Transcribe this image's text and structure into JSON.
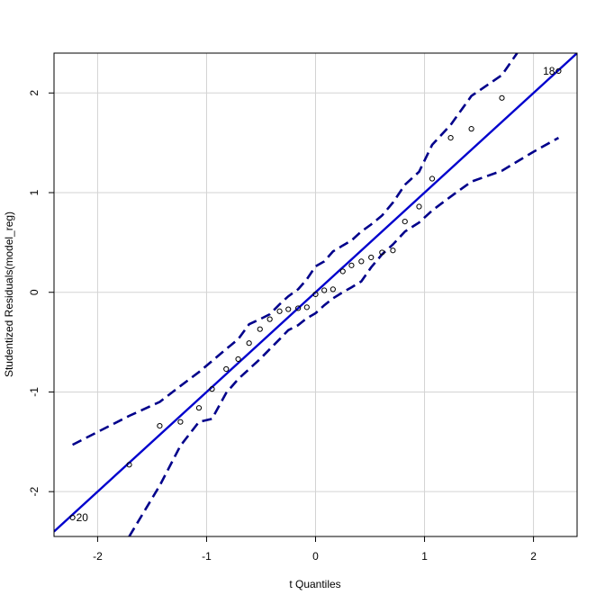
{
  "chart_data": {
    "type": "scatter",
    "title": "",
    "xlabel": "t Quantiles",
    "ylabel": "Studentized Residuals(model_reg)",
    "xlim": [
      -2.4,
      2.4
    ],
    "ylim": [
      -2.45,
      2.4
    ],
    "xticks": [
      {
        "value": -2,
        "label": "-2"
      },
      {
        "value": -1,
        "label": "-1"
      },
      {
        "value": 0,
        "label": "0"
      },
      {
        "value": 1,
        "label": "1"
      },
      {
        "value": 2,
        "label": "2"
      }
    ],
    "yticks": [
      {
        "value": -2,
        "label": "-2"
      },
      {
        "value": -1,
        "label": "-1"
      },
      {
        "value": 0,
        "label": "0"
      },
      {
        "value": 1,
        "label": "1"
      },
      {
        "value": 2,
        "label": "2"
      }
    ],
    "grid": true,
    "points": [
      {
        "x": -2.23,
        "y": -2.26
      },
      {
        "x": -1.71,
        "y": -1.73
      },
      {
        "x": -1.43,
        "y": -1.34
      },
      {
        "x": -1.24,
        "y": -1.3
      },
      {
        "x": -1.07,
        "y": -1.16
      },
      {
        "x": -0.95,
        "y": -0.97
      },
      {
        "x": -0.82,
        "y": -0.77
      },
      {
        "x": -0.71,
        "y": -0.67
      },
      {
        "x": -0.61,
        "y": -0.51
      },
      {
        "x": -0.51,
        "y": -0.37
      },
      {
        "x": -0.42,
        "y": -0.27
      },
      {
        "x": -0.33,
        "y": -0.19
      },
      {
        "x": -0.25,
        "y": -0.17
      },
      {
        "x": -0.16,
        "y": -0.16
      },
      {
        "x": -0.08,
        "y": -0.15
      },
      {
        "x": 0.0,
        "y": -0.02
      },
      {
        "x": 0.08,
        "y": 0.02
      },
      {
        "x": 0.16,
        "y": 0.03
      },
      {
        "x": 0.25,
        "y": 0.21
      },
      {
        "x": 0.33,
        "y": 0.27
      },
      {
        "x": 0.42,
        "y": 0.31
      },
      {
        "x": 0.51,
        "y": 0.35
      },
      {
        "x": 0.61,
        "y": 0.4
      },
      {
        "x": 0.71,
        "y": 0.42
      },
      {
        "x": 0.82,
        "y": 0.71
      },
      {
        "x": 0.95,
        "y": 0.86
      },
      {
        "x": 1.07,
        "y": 1.14
      },
      {
        "x": 1.24,
        "y": 1.55
      },
      {
        "x": 1.43,
        "y": 1.64
      },
      {
        "x": 1.71,
        "y": 1.95
      },
      {
        "x": 2.23,
        "y": 2.22
      }
    ],
    "point_labels": [
      {
        "x": -2.23,
        "y": -2.26,
        "text": "20",
        "side": "right"
      },
      {
        "x": 2.23,
        "y": 2.22,
        "text": "18",
        "side": "left"
      }
    ],
    "reference_line": {
      "intercept": 0.0,
      "slope": 1.0,
      "color": "#0000cd"
    },
    "envelope": {
      "color": "#00008b",
      "upper": [
        {
          "x": -2.23,
          "y": -1.53
        },
        {
          "x": -1.71,
          "y": -1.24
        },
        {
          "x": -1.43,
          "y": -1.1
        },
        {
          "x": -1.24,
          "y": -0.94
        },
        {
          "x": -1.07,
          "y": -0.8
        },
        {
          "x": -0.95,
          "y": -0.69
        },
        {
          "x": -0.82,
          "y": -0.57
        },
        {
          "x": -0.71,
          "y": -0.47
        },
        {
          "x": -0.61,
          "y": -0.32
        },
        {
          "x": -0.51,
          "y": -0.27
        },
        {
          "x": -0.42,
          "y": -0.22
        },
        {
          "x": -0.33,
          "y": -0.12
        },
        {
          "x": -0.25,
          "y": -0.04
        },
        {
          "x": -0.16,
          "y": 0.03
        },
        {
          "x": -0.08,
          "y": 0.13
        },
        {
          "x": 0.0,
          "y": 0.26
        },
        {
          "x": 0.08,
          "y": 0.31
        },
        {
          "x": 0.16,
          "y": 0.41
        },
        {
          "x": 0.25,
          "y": 0.47
        },
        {
          "x": 0.33,
          "y": 0.52
        },
        {
          "x": 0.42,
          "y": 0.61
        },
        {
          "x": 0.51,
          "y": 0.68
        },
        {
          "x": 0.61,
          "y": 0.77
        },
        {
          "x": 0.71,
          "y": 0.9
        },
        {
          "x": 0.82,
          "y": 1.08
        },
        {
          "x": 0.95,
          "y": 1.21
        },
        {
          "x": 1.07,
          "y": 1.48
        },
        {
          "x": 1.24,
          "y": 1.68
        },
        {
          "x": 1.43,
          "y": 1.97
        },
        {
          "x": 1.71,
          "y": 2.18
        },
        {
          "x": 1.85,
          "y": 2.4
        }
      ],
      "lower": [
        {
          "x": -1.71,
          "y": -2.45
        },
        {
          "x": -1.43,
          "y": -1.94
        },
        {
          "x": -1.24,
          "y": -1.54
        },
        {
          "x": -1.07,
          "y": -1.3
        },
        {
          "x": -0.95,
          "y": -1.27
        },
        {
          "x": -0.82,
          "y": -1.01
        },
        {
          "x": -0.71,
          "y": -0.87
        },
        {
          "x": -0.61,
          "y": -0.77
        },
        {
          "x": -0.51,
          "y": -0.67
        },
        {
          "x": -0.42,
          "y": -0.57
        },
        {
          "x": -0.33,
          "y": -0.47
        },
        {
          "x": -0.25,
          "y": -0.38
        },
        {
          "x": -0.16,
          "y": -0.33
        },
        {
          "x": -0.08,
          "y": -0.26
        },
        {
          "x": 0.0,
          "y": -0.21
        },
        {
          "x": 0.08,
          "y": -0.13
        },
        {
          "x": 0.16,
          "y": -0.06
        },
        {
          "x": 0.25,
          "y": 0.0
        },
        {
          "x": 0.33,
          "y": 0.05
        },
        {
          "x": 0.42,
          "y": 0.11
        },
        {
          "x": 0.51,
          "y": 0.25
        },
        {
          "x": 0.61,
          "y": 0.38
        },
        {
          "x": 0.71,
          "y": 0.48
        },
        {
          "x": 0.82,
          "y": 0.61
        },
        {
          "x": 0.95,
          "y": 0.7
        },
        {
          "x": 1.07,
          "y": 0.82
        },
        {
          "x": 1.24,
          "y": 0.96
        },
        {
          "x": 1.43,
          "y": 1.11
        },
        {
          "x": 1.71,
          "y": 1.22
        },
        {
          "x": 2.0,
          "y": 1.41
        },
        {
          "x": 2.23,
          "y": 1.55
        }
      ]
    },
    "colors": {
      "points": "#000000",
      "grid": "#d3d3d3",
      "frame": "#000000"
    }
  }
}
